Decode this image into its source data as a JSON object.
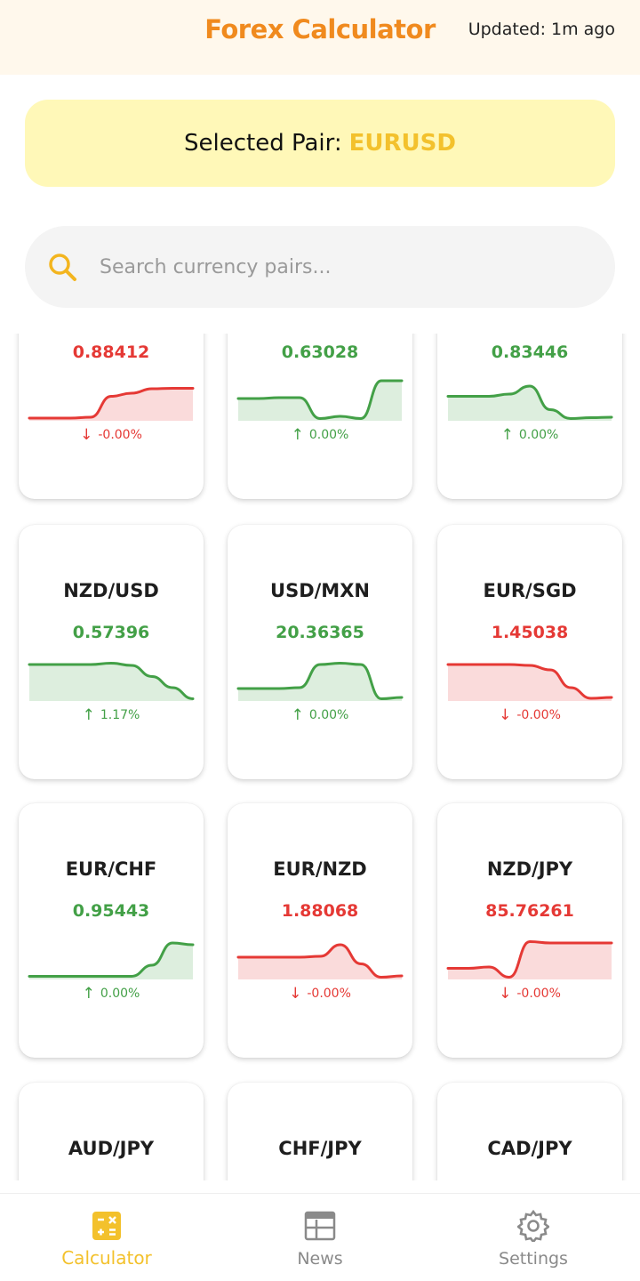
{
  "header": {
    "title": "Forex Calculator",
    "updated": "Updated: 1m ago"
  },
  "selected": {
    "label": "Selected Pair:",
    "value": "EURUSD"
  },
  "search": {
    "placeholder": "Search currency pairs...",
    "value": "",
    "icon": "search-icon"
  },
  "colors": {
    "up": "#43a047",
    "down": "#e53935",
    "accent": "#f08a1e",
    "active_nav": "#f3c12c"
  },
  "cards": [
    {
      "pair": "",
      "price": "0.88412",
      "change": "-0.00%",
      "trend": "down",
      "spark": [
        0.06,
        0.06,
        0.06,
        0.08,
        0.55,
        0.62,
        0.72,
        0.73,
        0.73
      ]
    },
    {
      "pair": "",
      "price": "0.63028",
      "change": "0.00%",
      "trend": "up",
      "spark": [
        0.5,
        0.5,
        0.52,
        0.52,
        0.05,
        0.1,
        0.05,
        0.9,
        0.9
      ]
    },
    {
      "pair": "",
      "price": "0.83446",
      "change": "0.00%",
      "trend": "up",
      "spark": [
        0.55,
        0.55,
        0.55,
        0.6,
        0.78,
        0.25,
        0.05,
        0.07,
        0.08
      ]
    },
    {
      "pair": "NZD/USD",
      "price": "0.57396",
      "change": "1.17%",
      "trend": "up",
      "spark": [
        0.82,
        0.82,
        0.82,
        0.82,
        0.85,
        0.8,
        0.55,
        0.3,
        0.05
      ]
    },
    {
      "pair": "USD/MXN",
      "price": "20.36365",
      "change": "0.00%",
      "trend": "up",
      "spark": [
        0.28,
        0.28,
        0.28,
        0.3,
        0.82,
        0.85,
        0.82,
        0.05,
        0.08
      ]
    },
    {
      "pair": "EUR/SGD",
      "price": "1.45038",
      "change": "-0.00%",
      "trend": "down",
      "spark": [
        0.82,
        0.82,
        0.82,
        0.82,
        0.8,
        0.7,
        0.3,
        0.06,
        0.08
      ]
    },
    {
      "pair": "EUR/CHF",
      "price": "0.95443",
      "change": "0.00%",
      "trend": "up",
      "spark": [
        0.07,
        0.07,
        0.07,
        0.07,
        0.07,
        0.07,
        0.32,
        0.82,
        0.78
      ]
    },
    {
      "pair": "EUR/NZD",
      "price": "1.88068",
      "change": "-0.00%",
      "trend": "down",
      "spark": [
        0.5,
        0.5,
        0.5,
        0.5,
        0.52,
        0.78,
        0.35,
        0.05,
        0.08
      ]
    },
    {
      "pair": "NZD/JPY",
      "price": "85.76261",
      "change": "-0.00%",
      "trend": "down",
      "spark": [
        0.25,
        0.25,
        0.28,
        0.05,
        0.85,
        0.82,
        0.82,
        0.82,
        0.82
      ]
    },
    {
      "pair": "AUD/JPY",
      "price": "",
      "change": "",
      "trend": "none",
      "spark": []
    },
    {
      "pair": "CHF/JPY",
      "price": "",
      "change": "",
      "trend": "none",
      "spark": []
    },
    {
      "pair": "CAD/JPY",
      "price": "",
      "change": "",
      "trend": "none",
      "spark": []
    }
  ],
  "nav": [
    {
      "label": "Calculator",
      "icon": "calculator-icon",
      "active": true
    },
    {
      "label": "News",
      "icon": "news-icon",
      "active": false
    },
    {
      "label": "Settings",
      "icon": "gear-icon",
      "active": false
    }
  ]
}
